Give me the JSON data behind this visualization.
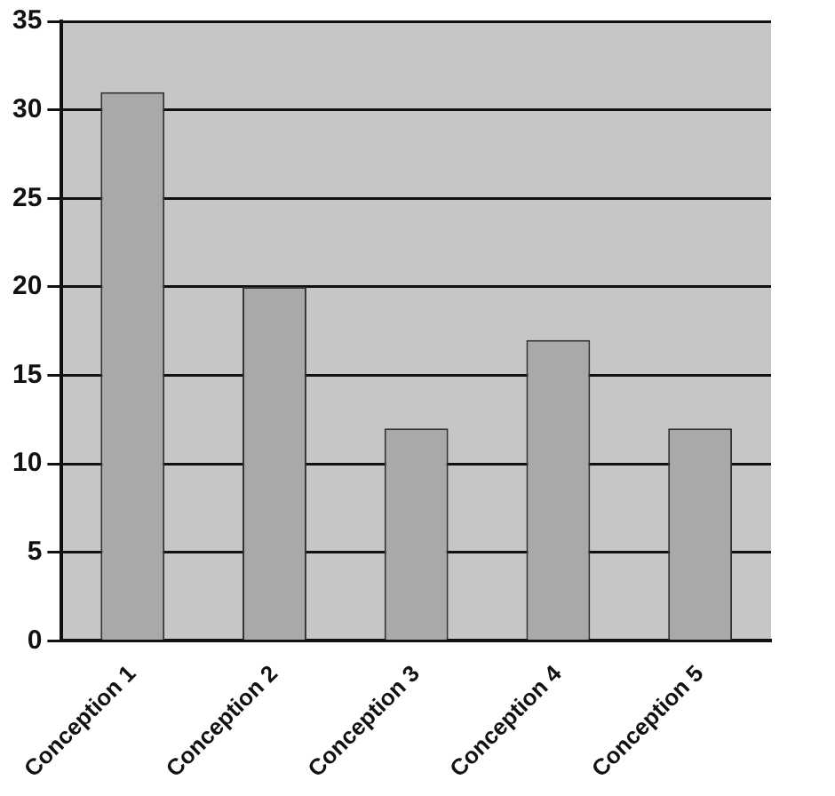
{
  "chart_data": {
    "type": "bar",
    "categories": [
      "Conception 1",
      "Conception 2",
      "Conception 3",
      "Conception 4",
      "Conception 5"
    ],
    "values": [
      31,
      20,
      12,
      17,
      12
    ],
    "color": "#a9a9a9",
    "ylim": [
      0,
      35
    ],
    "yticks": [
      0,
      5,
      10,
      15,
      20,
      25,
      30,
      35
    ],
    "grid": "y",
    "legend": false
  }
}
